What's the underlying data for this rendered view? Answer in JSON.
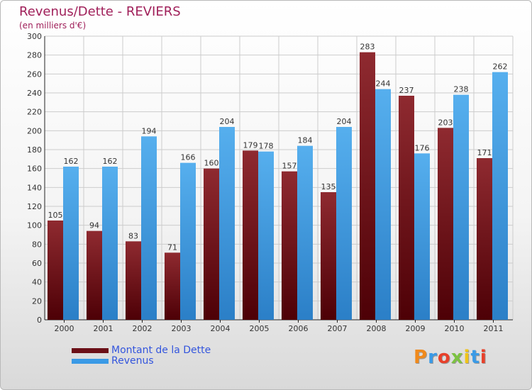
{
  "title": "Revenus/Dette - REVIERS",
  "subtitle": "(en milliers d'€)",
  "logo_text": "Proxiti",
  "colors": {
    "dette": "#6b0f17",
    "revenus": "#3a9ae6",
    "title": "#a0205a",
    "legend_text": "#3355dd"
  },
  "chart_data": {
    "type": "bar",
    "title": "Revenus/Dette - REVIERS",
    "ylabel": "(en milliers d'€)",
    "xlabel": "",
    "ylim": [
      0,
      300
    ],
    "ytick_step": 20,
    "grid": true,
    "legend_position": "bottom-left",
    "categories": [
      "2000",
      "2001",
      "2002",
      "2003",
      "2004",
      "2005",
      "2006",
      "2007",
      "2008",
      "2009",
      "2010",
      "2011"
    ],
    "series": [
      {
        "name": "Montant de la Dette",
        "values": [
          105,
          94,
          83,
          71,
          160,
          179,
          157,
          135,
          283,
          237,
          203,
          171
        ]
      },
      {
        "name": "Revenus",
        "values": [
          162,
          162,
          194,
          166,
          204,
          178,
          184,
          204,
          244,
          176,
          238,
          262
        ]
      }
    ]
  }
}
